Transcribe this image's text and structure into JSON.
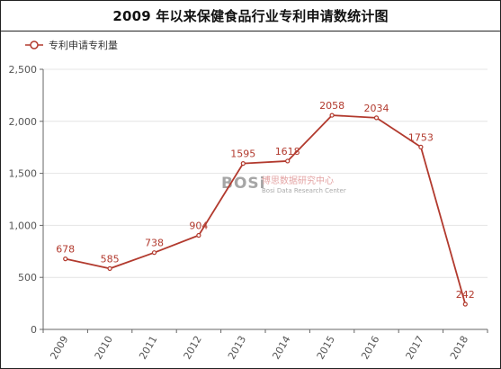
{
  "title": "2009 年以来保健食品行业专利申请数统计图",
  "colors": {
    "series": "#b23a2e",
    "axis": "#666666",
    "grid": "#e4e4e4"
  },
  "watermark": {
    "brand": "BOSi",
    "cn_name": "博思数据研究中心",
    "en_name": "Bosi Data Research Center"
  },
  "chart_data": {
    "type": "line",
    "categories": [
      "2009",
      "2010",
      "2011",
      "2012",
      "2013",
      "2014",
      "2015",
      "2016",
      "2017",
      "2018"
    ],
    "series": [
      {
        "name": "专利申请专利量",
        "values": [
          678,
          585,
          738,
          904,
          1595,
          1618,
          2058,
          2034,
          1753,
          242
        ],
        "labels": [
          "678",
          "585",
          "738",
          "904",
          "1595",
          "1618",
          "2058",
          "2034",
          "1753",
          "242"
        ]
      }
    ],
    "yticks": [
      "0",
      "500",
      "1,000",
      "1,500",
      "2,000",
      "2,500"
    ],
    "ylim": [
      0,
      2500
    ],
    "xlabel": "",
    "ylabel": "",
    "grid": true,
    "legend_position": "top-left"
  }
}
